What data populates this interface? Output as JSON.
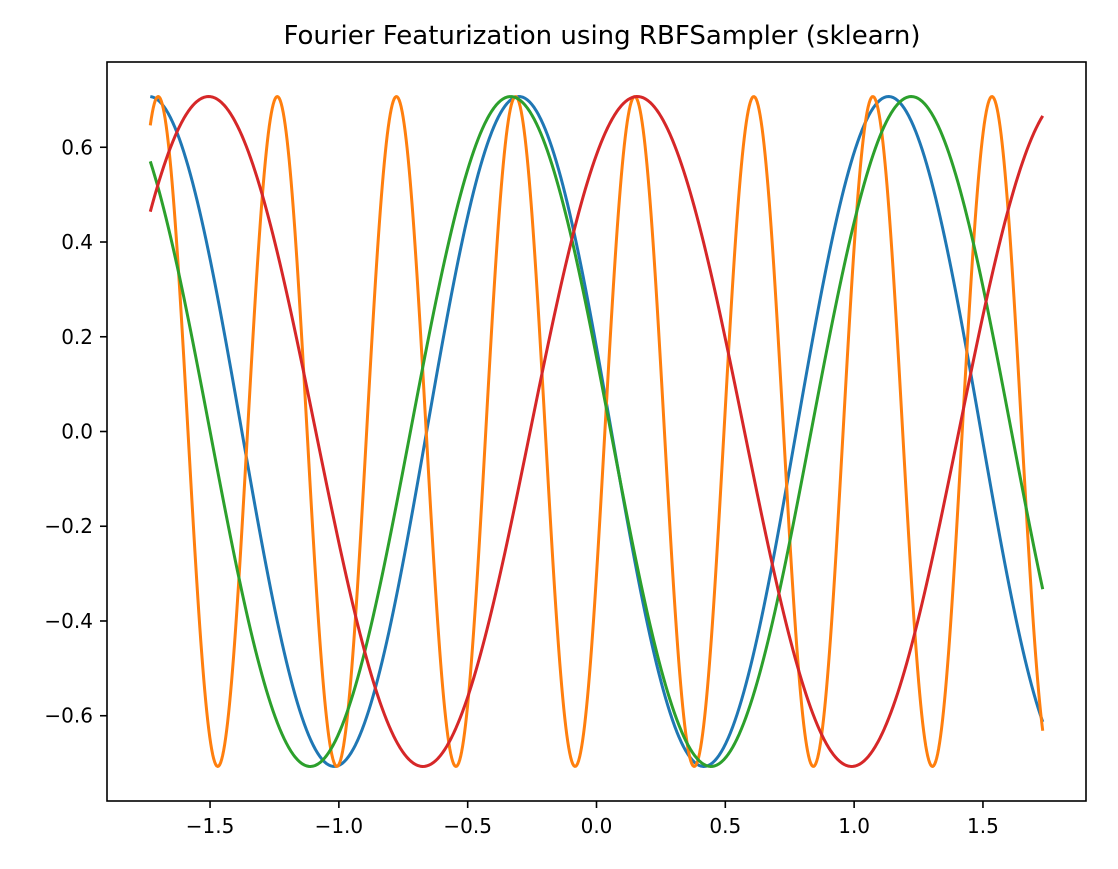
{
  "chart_data": {
    "type": "line",
    "title": "Fourier Featurization using RBFSampler (sklearn)",
    "xlabel": "",
    "ylabel": "",
    "xlim": [
      -1.9,
      1.9
    ],
    "ylim": [
      -0.78,
      0.78
    ],
    "xticks": [
      -1.5,
      -1.0,
      -0.5,
      0.0,
      0.5,
      1.0,
      1.5
    ],
    "xtick_labels": [
      "−1.5",
      "−1.0",
      "−0.5",
      "0.0",
      "0.5",
      "1.0",
      "1.5"
    ],
    "yticks": [
      0.6,
      0.4,
      0.2,
      0.0,
      -0.2,
      -0.4,
      -0.6
    ],
    "ytick_labels": [
      "0.6",
      "0.4",
      "0.2",
      "0.0",
      "−0.2",
      "−0.4",
      "−0.6"
    ],
    "grid": false,
    "legend": "none",
    "x_range": [
      -1.732,
      1.732
    ],
    "series": [
      {
        "color": "#1f77b4",
        "amplitude": 0.7071,
        "omega": 4.38,
        "phase": 7.6,
        "samples": 400
      },
      {
        "color": "#ff7f0e",
        "amplitude": 0.7071,
        "omega": 13.59,
        "phase": 23.12,
        "samples": 900
      },
      {
        "color": "#2ca02c",
        "amplitude": 0.7071,
        "omega": 4.04,
        "phase": 7.63,
        "samples": 400
      },
      {
        "color": "#d62728",
        "amplitude": 0.7071,
        "omega": 3.776,
        "phase": 5.685,
        "samples": 400
      }
    ]
  }
}
